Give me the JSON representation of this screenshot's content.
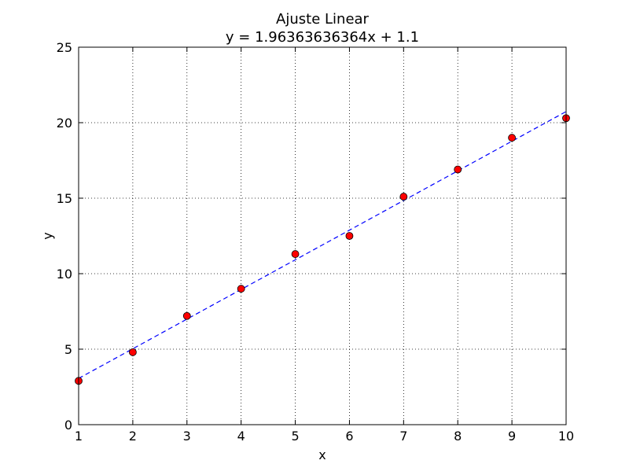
{
  "chart_data": {
    "type": "scatter",
    "title": "Ajuste Linear",
    "subtitle": "y = 1.96363636364x + 1.1",
    "xlabel": "x",
    "ylabel": "y",
    "xlim": [
      1,
      10
    ],
    "ylim": [
      0,
      25
    ],
    "xticks": [
      1,
      2,
      3,
      4,
      5,
      6,
      7,
      8,
      9,
      10
    ],
    "yticks": [
      0,
      5,
      10,
      15,
      20,
      25
    ],
    "grid": true,
    "series": [
      {
        "kind": "points",
        "color": "#ff0000",
        "x": [
          1,
          2,
          3,
          4,
          5,
          6,
          7,
          8,
          9,
          10
        ],
        "y": [
          2.9,
          4.8,
          7.2,
          9.0,
          11.3,
          12.5,
          15.1,
          16.9,
          19.0,
          20.3
        ]
      },
      {
        "kind": "fit-line",
        "color": "#0000ff",
        "style": "dashed",
        "slope": 1.96363636364,
        "intercept": 1.1
      }
    ]
  }
}
